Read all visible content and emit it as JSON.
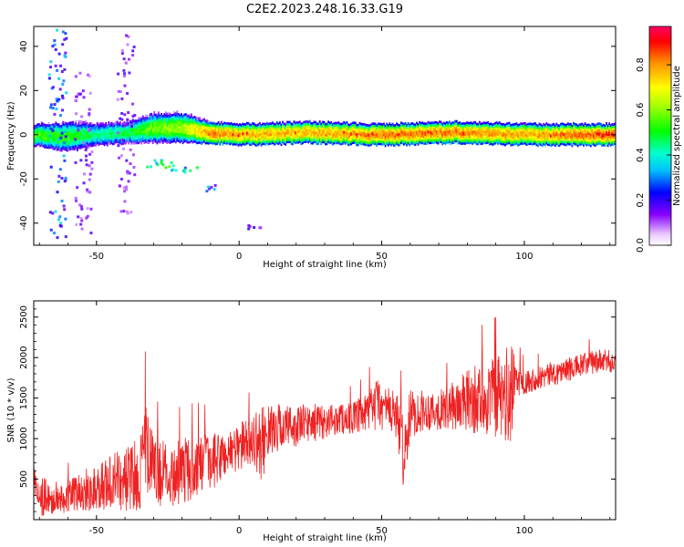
{
  "figure_title": "C2E2.2023.248.16.33.G19",
  "chart_data": [
    {
      "type": "heatmap",
      "xlabel": "Height of straight line (km)",
      "ylabel": "Frequency (Hz)",
      "xlim": [
        -72,
        132
      ],
      "ylim": [
        -50,
        49
      ],
      "x_ticks": [
        -50,
        0,
        50,
        100
      ],
      "y_ticks": [
        -40,
        -20,
        0,
        20,
        40
      ],
      "grid": false,
      "colorbar": {
        "label": "Normalized spectral amplitude",
        "range": [
          0,
          0.97
        ],
        "ticks": [
          0.0,
          0.2,
          0.4,
          0.6,
          0.8
        ],
        "tick_labels": [
          "0.0",
          "0.2",
          "0.4",
          "0.6",
          "0.8"
        ],
        "colormap": "rainbow (white/violet to red)"
      },
      "main_band": [
        {
          "x": -72,
          "center_hz": 0,
          "halfwidth_hz": 3,
          "peak": 0.55
        },
        {
          "x": -60,
          "center_hz": -1,
          "halfwidth_hz": 4,
          "peak": 0.55
        },
        {
          "x": -50,
          "center_hz": 0,
          "halfwidth_hz": 3,
          "peak": 0.45
        },
        {
          "x": -40,
          "center_hz": 1,
          "halfwidth_hz": 3,
          "peak": 0.5
        },
        {
          "x": -30,
          "center_hz": 3,
          "halfwidth_hz": 4,
          "peak": 0.6
        },
        {
          "x": -20,
          "center_hz": 3,
          "halfwidth_hz": 4,
          "peak": 0.65
        },
        {
          "x": -10,
          "center_hz": 1,
          "halfwidth_hz": 3,
          "peak": 0.85
        },
        {
          "x": 0,
          "center_hz": 0,
          "halfwidth_hz": 3,
          "peak": 0.8
        },
        {
          "x": 25,
          "center_hz": 1,
          "halfwidth_hz": 3,
          "peak": 0.8
        },
        {
          "x": 50,
          "center_hz": 0,
          "halfwidth_hz": 3,
          "peak": 0.85
        },
        {
          "x": 75,
          "center_hz": 1,
          "halfwidth_hz": 3,
          "peak": 0.85
        },
        {
          "x": 100,
          "center_hz": 0,
          "halfwidth_hz": 3,
          "peak": 0.8
        },
        {
          "x": 132,
          "center_hz": 0,
          "halfwidth_hz": 3,
          "peak": 0.9
        }
      ],
      "scatter_features": [
        {
          "x": -64,
          "y_range": [
            -49,
            49
          ],
          "level": 0.3
        },
        {
          "x": -55,
          "y_range": [
            -45,
            30
          ],
          "level": 0.15
        },
        {
          "x": -40,
          "y_range": [
            -35,
            46
          ],
          "level": 0.15
        },
        {
          "x": -30,
          "y_range": [
            -14,
            -10
          ],
          "level": 0.4
        },
        {
          "x": -25,
          "y_range": [
            -18,
            -12
          ],
          "level": 0.45
        },
        {
          "x": -18,
          "y_range": [
            -17,
            -14
          ],
          "level": 0.4
        },
        {
          "x": -9,
          "y_range": [
            -25,
            -22
          ],
          "level": 0.3
        },
        {
          "x": 5,
          "y_range": [
            -42,
            -40
          ],
          "level": 0.2
        }
      ]
    },
    {
      "type": "line",
      "xlabel": "Height of straight line (km)",
      "ylabel": "SNR (10 * v/v)",
      "xlim": [
        -72,
        132
      ],
      "ylim": [
        0,
        2700
      ],
      "x_ticks": [
        -50,
        0,
        50,
        100
      ],
      "y_ticks": [
        500,
        1000,
        1500,
        2000,
        2500
      ],
      "grid": false,
      "line_color": "#ee2222",
      "series": [
        {
          "values_x": [
            -72,
            -70,
            -65,
            -60,
            -55,
            -50,
            -45,
            -40,
            -35,
            -33,
            -30,
            -25,
            -20,
            -15,
            -10,
            -5,
            0,
            5,
            8,
            10,
            15,
            20,
            25,
            30,
            35,
            40,
            45,
            48,
            50,
            55,
            58,
            60,
            65,
            70,
            75,
            80,
            85,
            90,
            93,
            95,
            97,
            100,
            105,
            110,
            115,
            120,
            125,
            132
          ],
          "values_y": [
            450,
            300,
            250,
            300,
            350,
            400,
            450,
            500,
            550,
            900,
            600,
            550,
            600,
            650,
            700,
            800,
            900,
            1000,
            900,
            1100,
            1150,
            1150,
            1200,
            1200,
            1250,
            1250,
            1300,
            1450,
            1400,
            1300,
            800,
            1300,
            1350,
            1350,
            1400,
            1450,
            1500,
            1500,
            1500,
            1500,
            1750,
            1700,
            1750,
            1800,
            1850,
            1900,
            1950,
            1950
          ],
          "noise_amplitude": [
            200,
            250,
            220,
            200,
            250,
            300,
            350,
            400,
            450,
            600,
            450,
            400,
            400,
            400,
            350,
            300,
            300,
            300,
            500,
            300,
            300,
            250,
            250,
            200,
            200,
            200,
            250,
            350,
            300,
            300,
            500,
            300,
            250,
            250,
            300,
            400,
            450,
            500,
            600,
            700,
            250,
            150,
            150,
            150,
            150,
            150,
            150,
            150
          ]
        }
      ]
    }
  ]
}
